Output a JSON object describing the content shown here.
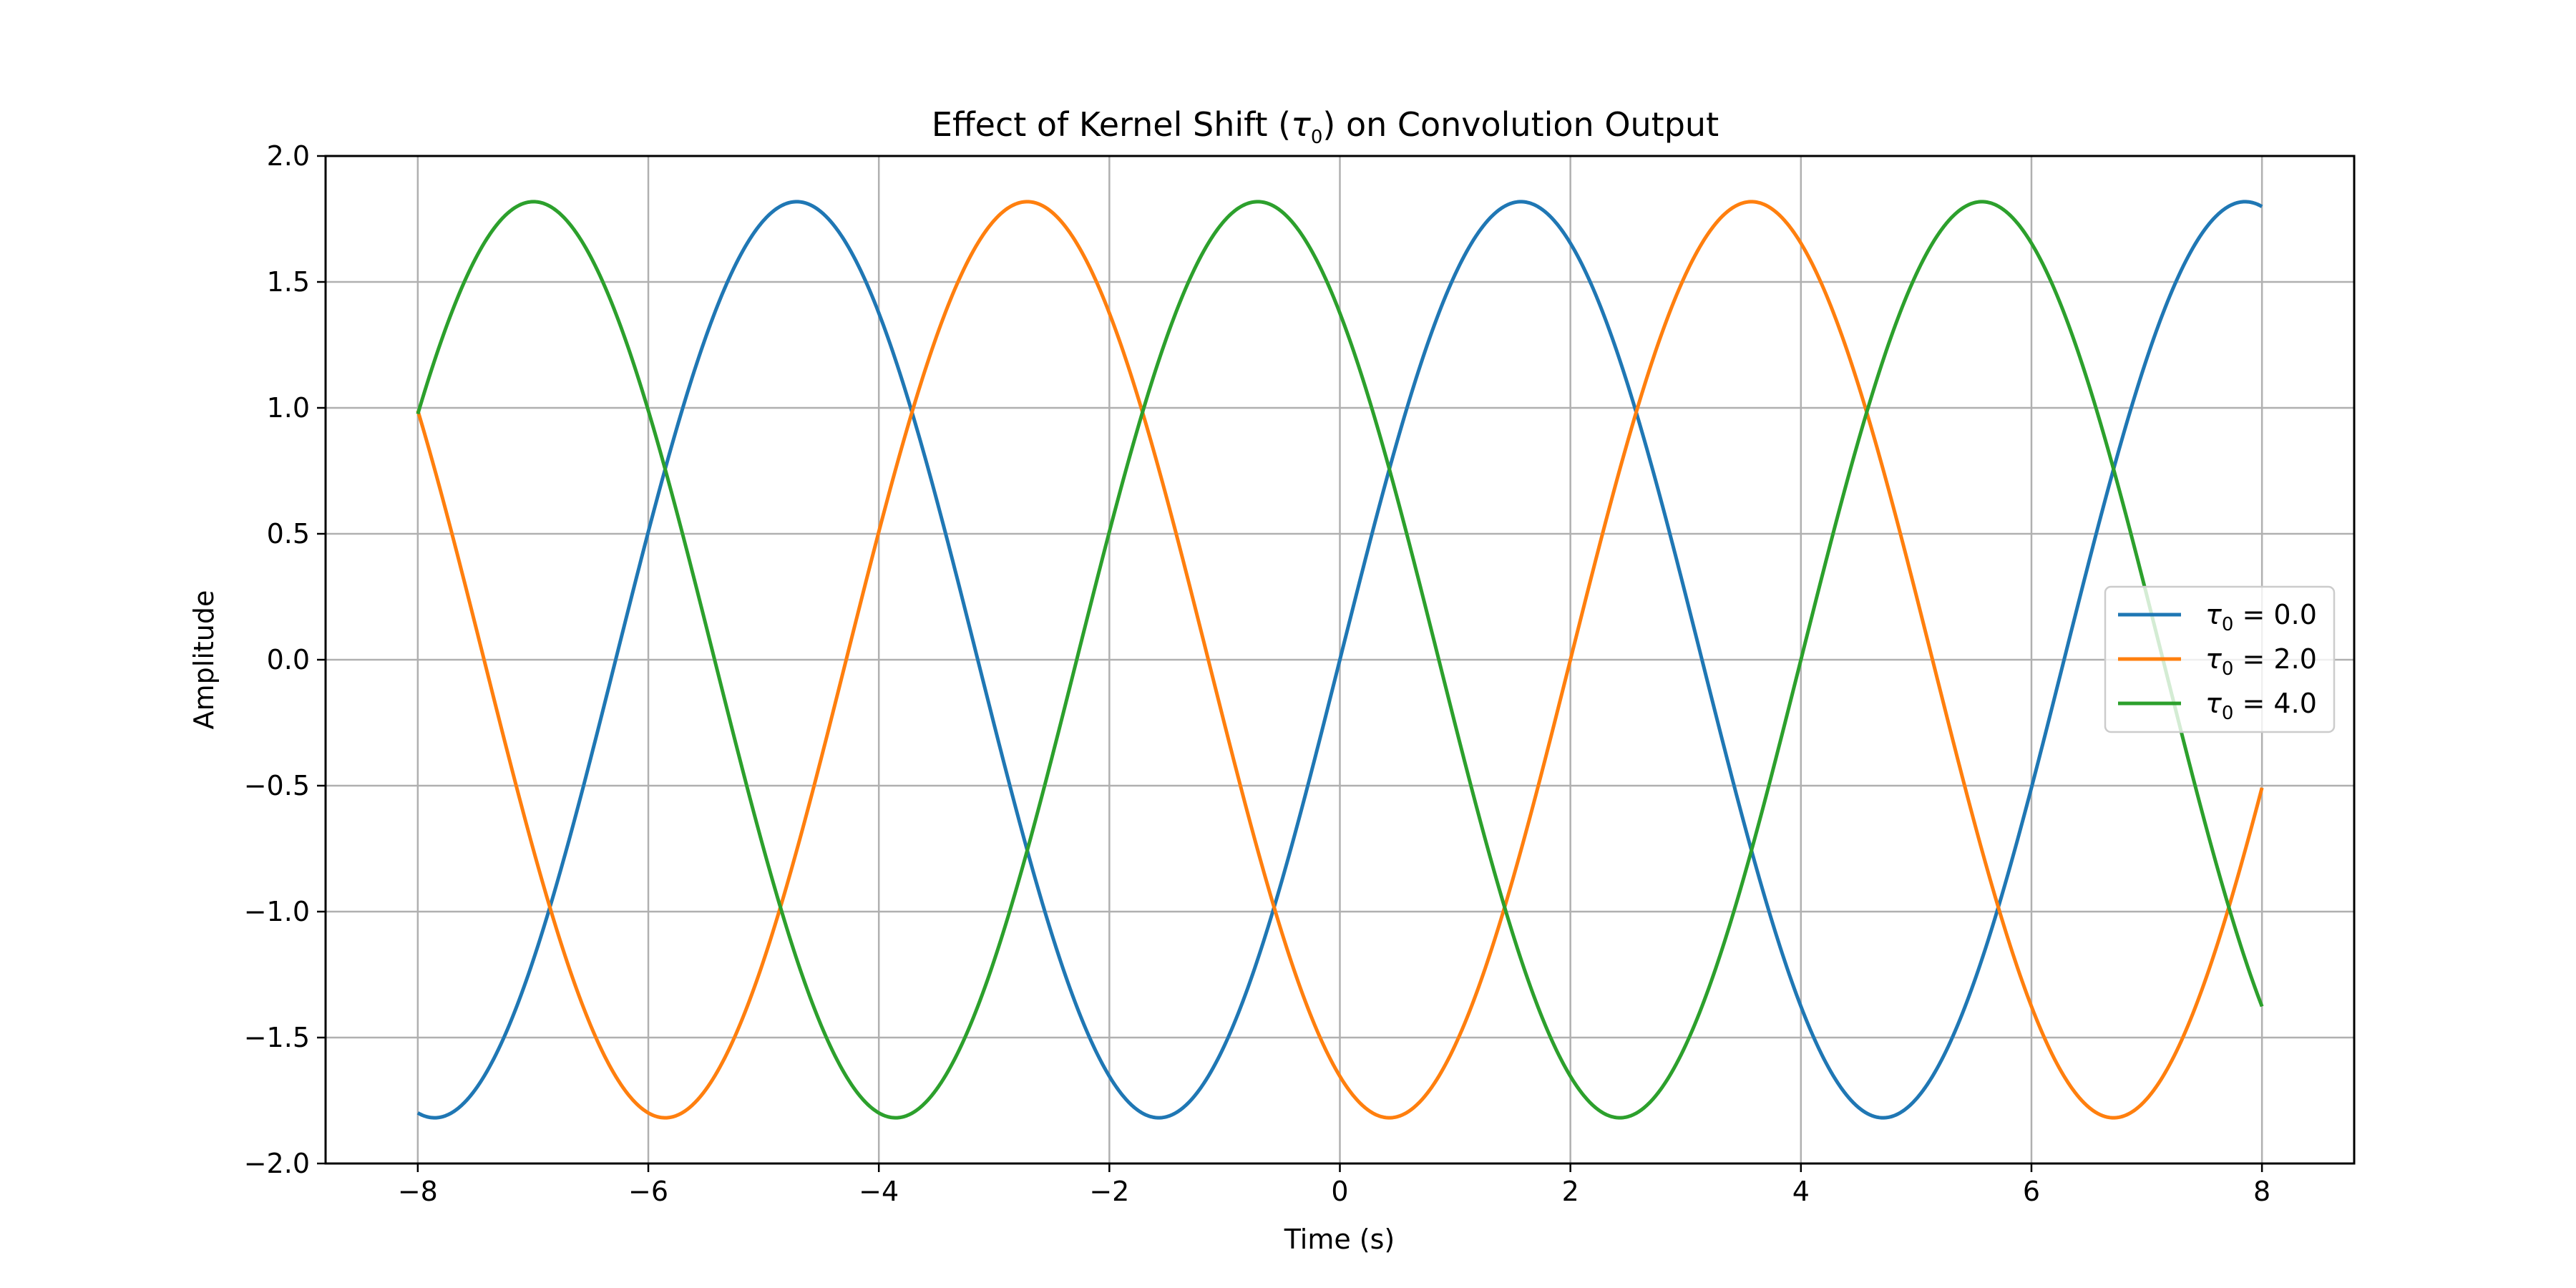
{
  "chart_data": {
    "type": "line",
    "title": "Effect of Kernel Shift (τ0) on Convolution Output",
    "title_parts": {
      "before": "Effect of Kernel Shift (",
      "tau": "τ",
      "sub": "0",
      "after": ") on Convolution Output"
    },
    "xlabel": "Time (s)",
    "ylabel": "Amplitude",
    "xlim": [
      -8.8,
      8.8
    ],
    "ylim": [
      -2.0,
      2.0
    ],
    "xticks": [
      -8,
      -6,
      -4,
      -2,
      0,
      2,
      4,
      6,
      8
    ],
    "xtick_labels": [
      "−8",
      "−6",
      "−4",
      "−2",
      "0",
      "2",
      "4",
      "6",
      "8"
    ],
    "yticks": [
      -2.0,
      -1.5,
      -1.0,
      -0.5,
      0.0,
      0.5,
      1.0,
      1.5,
      2.0
    ],
    "ytick_labels": [
      "−2.0",
      "−1.5",
      "−1.0",
      "−0.5",
      "0.0",
      "0.5",
      "1.0",
      "1.5",
      "2.0"
    ],
    "grid": true,
    "legend_position": "center-right",
    "x_range": [
      -8,
      8
    ],
    "series": [
      {
        "name": "τ0 = 0.0",
        "tau": "τ",
        "sub": "0",
        "rest": " = 0.0",
        "color": "#1f77b4",
        "amplitude": 1.8186,
        "omega": 1.0,
        "phase": 0.0
      },
      {
        "name": "τ0 = 2.0",
        "tau": "τ",
        "sub": "0",
        "rest": " = 2.0",
        "color": "#ff7f0e",
        "amplitude": 1.8186,
        "omega": 1.0,
        "phase": -2.0
      },
      {
        "name": "τ0 = 4.0",
        "tau": "τ",
        "sub": "0",
        "rest": " = 4.0",
        "color": "#2ca02c",
        "amplitude": 1.8186,
        "omega": 1.0,
        "phase": -4.0
      }
    ]
  }
}
